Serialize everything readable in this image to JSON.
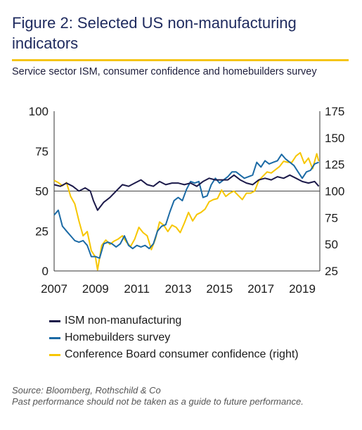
{
  "header": {
    "title": "Figure 2: Selected US non-manufacturing indicators",
    "subtitle": "Service sector ISM, consumer confidence and homebuilders survey"
  },
  "footer": {
    "source": "Source: Bloomberg, Rothschild & Co",
    "disclaimer": "Past performance should not be taken as a guide to future performance."
  },
  "colors": {
    "accent_rule": "#f5c518",
    "title": "#1e2a5e",
    "ism": "#1c1a4a",
    "homebuilders": "#1b6aa5",
    "confidence": "#f7c600",
    "reference_line": "#444444"
  },
  "chart_data": {
    "type": "line",
    "title": "",
    "xlabel": "",
    "ylabel": "",
    "x_ticks": [
      "2007",
      "2009",
      "2011",
      "2013",
      "2015",
      "2017",
      "2019"
    ],
    "xlim": [
      2007,
      2019.85
    ],
    "y_left_ticks": [
      "0",
      "25",
      "50",
      "75",
      "100"
    ],
    "ylim_left": [
      0,
      100
    ],
    "y_right_ticks": [
      "25",
      "50",
      "75",
      "100",
      "125",
      "150",
      "175"
    ],
    "ylim_right": [
      25,
      175
    ],
    "reference_line_left": 50,
    "grid": false,
    "legend_position": "bottom-left",
    "series": [
      {
        "name": "ISM non-manufacturing",
        "axis": "left",
        "color_key": "ism",
        "x": [
          2007.0,
          2007.3,
          2007.6,
          2007.9,
          2008.2,
          2008.5,
          2008.75,
          2008.9,
          2009.1,
          2009.4,
          2009.7,
          2010.0,
          2010.3,
          2010.6,
          2010.9,
          2011.2,
          2011.5,
          2011.8,
          2012.1,
          2012.4,
          2012.7,
          2013.0,
          2013.3,
          2013.6,
          2013.9,
          2014.2,
          2014.5,
          2014.8,
          2015.1,
          2015.4,
          2015.7,
          2016.0,
          2016.3,
          2016.6,
          2016.9,
          2017.2,
          2017.5,
          2017.8,
          2018.1,
          2018.4,
          2018.7,
          2019.0,
          2019.3,
          2019.6,
          2019.8
        ],
        "values": [
          54,
          53,
          55,
          53,
          50,
          52,
          50,
          44,
          38,
          43,
          46,
          50,
          54,
          53,
          55,
          57,
          54,
          53,
          56,
          54,
          55,
          55,
          54,
          55,
          53,
          56,
          58,
          57,
          57,
          57,
          60,
          57,
          55,
          54,
          57,
          58,
          57,
          59,
          58,
          60,
          58,
          56,
          55,
          56,
          53
        ]
      },
      {
        "name": "Homebuilders survey",
        "axis": "left",
        "color_key": "homebuilders",
        "x": [
          2007.0,
          2007.2,
          2007.4,
          2007.6,
          2007.8,
          2008.0,
          2008.2,
          2008.4,
          2008.6,
          2008.8,
          2009.0,
          2009.2,
          2009.4,
          2009.6,
          2009.8,
          2010.0,
          2010.2,
          2010.4,
          2010.6,
          2010.8,
          2011.0,
          2011.2,
          2011.4,
          2011.6,
          2011.8,
          2012.0,
          2012.2,
          2012.4,
          2012.6,
          2012.8,
          2013.0,
          2013.2,
          2013.4,
          2013.6,
          2013.8,
          2014.0,
          2014.2,
          2014.4,
          2014.6,
          2014.8,
          2015.0,
          2015.2,
          2015.4,
          2015.6,
          2015.8,
          2016.0,
          2016.2,
          2016.4,
          2016.6,
          2016.8,
          2017.0,
          2017.2,
          2017.4,
          2017.6,
          2017.8,
          2018.0,
          2018.2,
          2018.4,
          2018.6,
          2018.8,
          2019.0,
          2019.2,
          2019.4,
          2019.6,
          2019.8
        ],
        "values": [
          35,
          38,
          28,
          25,
          22,
          19,
          18,
          19,
          16,
          9,
          9,
          8,
          17,
          18,
          17,
          15,
          17,
          22,
          16,
          14,
          16,
          15,
          16,
          14,
          17,
          25,
          28,
          29,
          37,
          44,
          46,
          44,
          51,
          56,
          55,
          56,
          46,
          47,
          54,
          58,
          55,
          57,
          59,
          62,
          62,
          60,
          58,
          59,
          60,
          68,
          65,
          69,
          67,
          68,
          69,
          73,
          70,
          68,
          66,
          62,
          58,
          62,
          63,
          67,
          68
        ]
      },
      {
        "name": "Conference Board consumer confidence (right)",
        "axis": "right",
        "color_key": "confidence",
        "x": [
          2007.0,
          2007.2,
          2007.4,
          2007.6,
          2007.8,
          2008.0,
          2008.2,
          2008.4,
          2008.6,
          2008.8,
          2009.0,
          2009.1,
          2009.3,
          2009.5,
          2009.7,
          2009.9,
          2010.1,
          2010.3,
          2010.5,
          2010.7,
          2010.9,
          2011.1,
          2011.3,
          2011.5,
          2011.7,
          2011.9,
          2012.1,
          2012.3,
          2012.5,
          2012.7,
          2012.9,
          2013.1,
          2013.3,
          2013.5,
          2013.7,
          2013.9,
          2014.1,
          2014.3,
          2014.5,
          2014.7,
          2014.9,
          2015.1,
          2015.3,
          2015.5,
          2015.7,
          2015.9,
          2016.1,
          2016.3,
          2016.5,
          2016.7,
          2016.9,
          2017.1,
          2017.3,
          2017.5,
          2017.7,
          2017.9,
          2018.1,
          2018.3,
          2018.5,
          2018.7,
          2018.9,
          2019.1,
          2019.3,
          2019.5,
          2019.7,
          2019.8
        ],
        "values": [
          110,
          108,
          105,
          108,
          95,
          88,
          72,
          58,
          62,
          44,
          38,
          26,
          49,
          54,
          50,
          53,
          55,
          58,
          52,
          48,
          55,
          66,
          61,
          58,
          45,
          55,
          71,
          68,
          62,
          68,
          66,
          61,
          70,
          80,
          72,
          78,
          80,
          83,
          90,
          92,
          93,
          101,
          95,
          98,
          100,
          96,
          92,
          98,
          98,
          100,
          110,
          114,
          118,
          117,
          120,
          123,
          128,
          127,
          127,
          133,
          136,
          126,
          131,
          121,
          135,
          128
        ]
      }
    ]
  }
}
